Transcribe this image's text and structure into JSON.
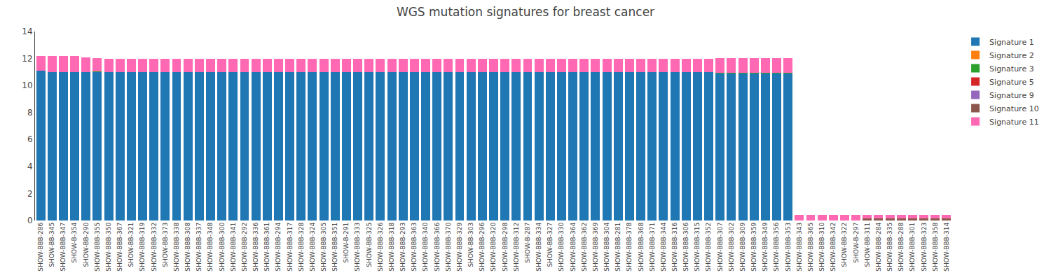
{
  "chart_data": {
    "type": "bar",
    "title": "WGS mutation signatures for breast cancer",
    "stacked": true,
    "grid": false,
    "legend": "upper right",
    "categories": [
      "SHOW-BBB-286",
      "SHOW-BB-345",
      "SHOW-BBB-347",
      "SHOW-B-354",
      "SHOW-BB-290",
      "SHOW-BBB-355",
      "SHOW-BBB-350",
      "SHOW-BBB-367",
      "SHOW-BB-321",
      "SHOW-BBB-319",
      "SHOW-BBB-332",
      "SHOW-BB-373",
      "SHOW-BBB-338",
      "SHOW-BBB-308",
      "SHOW-BBB-337",
      "SHOW-BBB-348",
      "SHOW-BBB-300",
      "SHOW-BBB-341",
      "SHOW-BBB-292",
      "SHOW-BBB-336",
      "SHOW-BBB-361",
      "SHOW-BBB-294",
      "SHOW-BBB-317",
      "SHOW-BBB-328",
      "SHOW-BBB-324",
      "SHOW-BBB-305",
      "SHOW-BBB-351",
      "SHOW-B-291",
      "SHOW-BBB-333",
      "SHOW-BB-325",
      "SHOW-BBB-326",
      "SHOW-BBB-318",
      "SHOW-BBB-293",
      "SHOW-BBB-363",
      "SHOW-BBB-340",
      "SHOW-BBB-366",
      "SHOW-BBB-370",
      "SHOW-BBB-329",
      "SHOW-BB-303",
      "SHOW-BBB-296",
      "SHOW-BBB-320",
      "SHOW-BBB-298",
      "SHOW-BBB-312",
      "SHOW-B-287",
      "SHOW-BBB-334",
      "SHOW-BB-327",
      "SHOW-BBB-330",
      "SHOW-BBB-364",
      "SHOW-BBB-362",
      "SHOW-BBB-369",
      "SHOW-BBB-304",
      "SHOW-BBB-281",
      "SHOW-BBB-378",
      "SHOW-BBB-368",
      "SHOW-BBB-371",
      "SHOW-BBB-344",
      "SHOW-BBB-316",
      "SHOW-BBB-306",
      "SHOW-BBB-315",
      "SHOW-BBB-352",
      "SHOW-BBB-307",
      "SHOW-BBB-302",
      "SHOW-BBB-309",
      "SHOW-BBB-359",
      "SHOW-BBB-349",
      "SHOW-BBB-356",
      "SHOW-BBB-353",
      "SHOW-BBB-343",
      "SHOW-BBB-365",
      "SHOW-BBB-310",
      "SHOW-BBB-342",
      "SHOW-BB-322",
      "SHOW-B-297",
      "SHOW-BB-311",
      "SHOW-BBB-284",
      "SHOW-BBB-335",
      "SHOW-BBB-288",
      "SHOW-BBB-301",
      "SHOW-BBB-323",
      "SHOW-BBB-358",
      "SHOW-BBB-314"
    ],
    "series": [
      {
        "name": "Signature 1",
        "color": "#1f77b4",
        "values": [
          11.1,
          11.0,
          11.0,
          11.0,
          11.0,
          11.0,
          11.0,
          11.0,
          11.0,
          11.0,
          11.0,
          11.0,
          11.0,
          11.0,
          11.0,
          11.0,
          11.0,
          11.0,
          11.0,
          11.0,
          11.0,
          11.0,
          11.0,
          11.0,
          11.0,
          11.0,
          11.0,
          11.0,
          11.0,
          11.0,
          11.0,
          11.0,
          11.0,
          11.0,
          11.0,
          11.0,
          11.0,
          11.0,
          11.0,
          11.0,
          11.0,
          11.0,
          11.0,
          11.0,
          11.0,
          11.0,
          11.0,
          11.0,
          11.0,
          11.0,
          11.0,
          11.0,
          11.0,
          11.0,
          11.0,
          11.0,
          11.0,
          11.0,
          11.0,
          11.0,
          10.9,
          10.9,
          10.9,
          10.9,
          10.9,
          10.9,
          10.9,
          0.0,
          0.0,
          0.0,
          0.0,
          0.0,
          0.0,
          0.0,
          0.0,
          0.0,
          0.0,
          0.0,
          0.0,
          0.0,
          0.0
        ]
      },
      {
        "name": "Signature 2",
        "color": "#ff7f0e",
        "values": [
          0.0,
          0.0,
          0.0,
          0.0,
          0.0,
          0.0,
          0.0,
          0.0,
          0.0,
          0.0,
          0.0,
          0.0,
          0.0,
          0.0,
          0.0,
          0.0,
          0.0,
          0.0,
          0.0,
          0.0,
          0.0,
          0.0,
          0.0,
          0.0,
          0.0,
          0.0,
          0.0,
          0.0,
          0.0,
          0.0,
          0.0,
          0.0,
          0.0,
          0.0,
          0.0,
          0.0,
          0.0,
          0.0,
          0.0,
          0.0,
          0.0,
          0.0,
          0.0,
          0.0,
          0.0,
          0.0,
          0.0,
          0.0,
          0.0,
          0.0,
          0.0,
          0.0,
          0.0,
          0.0,
          0.0,
          0.0,
          0.0,
          0.0,
          0.0,
          0.0,
          0.0,
          0.0,
          0.0,
          0.0,
          0.0,
          0.0,
          0.0,
          0.0,
          0.0,
          0.0,
          0.0,
          0.0,
          0.0,
          0.0,
          0.0,
          0.0,
          0.0,
          0.0,
          0.0,
          0.0,
          0.0
        ]
      },
      {
        "name": "Signature 3",
        "color": "#2ca02c",
        "values": [
          0.0,
          0.0,
          0.0,
          0.0,
          0.0,
          0.05,
          0.0,
          0.0,
          0.0,
          0.0,
          0.0,
          0.0,
          0.0,
          0.0,
          0.0,
          0.0,
          0.0,
          0.0,
          0.0,
          0.0,
          0.0,
          0.0,
          0.0,
          0.0,
          0.0,
          0.0,
          0.0,
          0.0,
          0.0,
          0.0,
          0.0,
          0.0,
          0.0,
          0.0,
          0.0,
          0.0,
          0.0,
          0.0,
          0.0,
          0.0,
          0.0,
          0.0,
          0.0,
          0.0,
          0.0,
          0.0,
          0.0,
          0.0,
          0.0,
          0.0,
          0.0,
          0.0,
          0.0,
          0.0,
          0.0,
          0.0,
          0.0,
          0.0,
          0.0,
          0.0,
          0.05,
          0.05,
          0.05,
          0.05,
          0.05,
          0.05,
          0.05,
          0.0,
          0.0,
          0.0,
          0.0,
          0.0,
          0.0,
          0.0,
          0.0,
          0.0,
          0.0,
          0.0,
          0.0,
          0.0,
          0.0
        ]
      },
      {
        "name": "Signature 5",
        "color": "#d62728",
        "values": [
          0.0,
          0.0,
          0.0,
          0.0,
          0.0,
          0.0,
          0.0,
          0.0,
          0.0,
          0.0,
          0.0,
          0.0,
          0.0,
          0.0,
          0.0,
          0.0,
          0.0,
          0.0,
          0.0,
          0.0,
          0.0,
          0.0,
          0.0,
          0.0,
          0.0,
          0.0,
          0.0,
          0.0,
          0.0,
          0.0,
          0.0,
          0.0,
          0.0,
          0.0,
          0.0,
          0.0,
          0.0,
          0.0,
          0.0,
          0.0,
          0.0,
          0.0,
          0.0,
          0.0,
          0.0,
          0.0,
          0.0,
          0.0,
          0.0,
          0.0,
          0.0,
          0.0,
          0.0,
          0.0,
          0.0,
          0.0,
          0.0,
          0.0,
          0.0,
          0.0,
          0.0,
          0.0,
          0.0,
          0.0,
          0.0,
          0.0,
          0.0,
          0.0,
          0.0,
          0.0,
          0.0,
          0.0,
          0.0,
          0.0,
          0.0,
          0.0,
          0.0,
          0.0,
          0.0,
          0.0,
          0.0
        ]
      },
      {
        "name": "Signature 9",
        "color": "#9467bd",
        "values": [
          0.0,
          0.0,
          0.0,
          0.0,
          0.0,
          0.0,
          0.0,
          0.0,
          0.0,
          0.0,
          0.0,
          0.0,
          0.0,
          0.0,
          0.0,
          0.0,
          0.0,
          0.0,
          0.0,
          0.0,
          0.0,
          0.0,
          0.0,
          0.0,
          0.0,
          0.0,
          0.0,
          0.0,
          0.0,
          0.0,
          0.0,
          0.0,
          0.0,
          0.0,
          0.0,
          0.0,
          0.0,
          0.0,
          0.0,
          0.0,
          0.0,
          0.0,
          0.0,
          0.0,
          0.0,
          0.0,
          0.0,
          0.0,
          0.0,
          0.0,
          0.0,
          0.0,
          0.0,
          0.0,
          0.0,
          0.0,
          0.0,
          0.0,
          0.0,
          0.0,
          0.0,
          0.0,
          0.0,
          0.0,
          0.0,
          0.0,
          0.0,
          0.0,
          0.0,
          0.0,
          0.0,
          0.0,
          0.0,
          0.0,
          0.0,
          0.0,
          0.0,
          0.0,
          0.0,
          0.0,
          0.0
        ]
      },
      {
        "name": "Signature 10",
        "color": "#8c564b",
        "values": [
          0.0,
          0.0,
          0.0,
          0.0,
          0.0,
          0.0,
          0.0,
          0.0,
          0.0,
          0.0,
          0.0,
          0.0,
          0.0,
          0.0,
          0.0,
          0.0,
          0.0,
          0.0,
          0.0,
          0.0,
          0.0,
          0.0,
          0.0,
          0.0,
          0.0,
          0.0,
          0.0,
          0.0,
          0.0,
          0.0,
          0.0,
          0.0,
          0.0,
          0.0,
          0.0,
          0.0,
          0.0,
          0.0,
          0.0,
          0.0,
          0.0,
          0.0,
          0.0,
          0.0,
          0.0,
          0.0,
          0.0,
          0.0,
          0.0,
          0.0,
          0.0,
          0.0,
          0.0,
          0.0,
          0.0,
          0.0,
          0.0,
          0.0,
          0.0,
          0.0,
          0.0,
          0.0,
          0.0,
          0.0,
          0.0,
          0.0,
          0.0,
          0.0,
          0.0,
          0.0,
          0.0,
          0.0,
          0.0,
          0.15,
          0.15,
          0.15,
          0.15,
          0.15,
          0.15,
          0.15,
          0.15
        ]
      },
      {
        "name": "Signature 11",
        "color": "#ff69b4",
        "values": [
          1.1,
          1.2,
          1.2,
          1.2,
          1.1,
          1.0,
          1.0,
          1.0,
          1.0,
          1.0,
          1.0,
          1.0,
          1.0,
          1.0,
          1.0,
          1.0,
          1.0,
          1.0,
          1.0,
          1.0,
          1.0,
          1.0,
          1.0,
          1.0,
          1.0,
          1.0,
          1.0,
          1.0,
          1.0,
          1.0,
          1.0,
          1.0,
          1.0,
          1.0,
          1.0,
          1.0,
          1.0,
          1.0,
          1.0,
          1.0,
          1.0,
          1.0,
          1.0,
          1.0,
          1.0,
          1.0,
          1.0,
          1.0,
          1.0,
          1.0,
          1.0,
          1.0,
          1.0,
          1.0,
          1.0,
          1.0,
          1.0,
          1.0,
          1.0,
          1.0,
          1.1,
          1.1,
          1.1,
          1.1,
          1.1,
          1.1,
          1.1,
          0.4,
          0.4,
          0.4,
          0.4,
          0.4,
          0.4,
          0.25,
          0.25,
          0.25,
          0.25,
          0.25,
          0.25,
          0.25,
          0.25
        ]
      }
    ],
    "ylim": [
      0,
      14
    ],
    "yticks": [
      0,
      2,
      4,
      6,
      8,
      10,
      12,
      14
    ]
  }
}
